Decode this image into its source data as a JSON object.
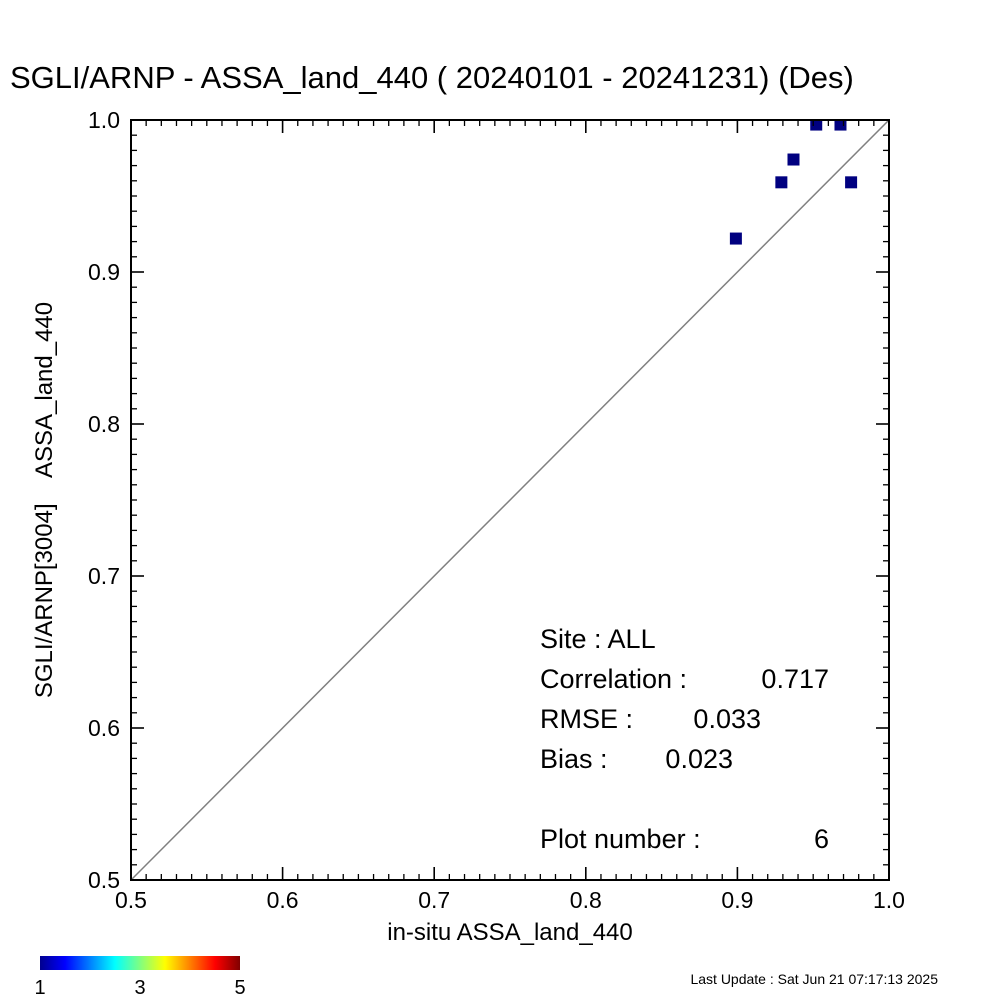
{
  "chart_data": {
    "type": "scatter",
    "title": "SGLI/ARNP - ASSA_land_440 ( 20240101 - 20241231) (Des)",
    "xlabel": "in-situ ASSA_land_440",
    "ylabel": "SGLI/ARNP[3004]    ASSA_land_440",
    "xlim": [
      0.5,
      1.0
    ],
    "ylim": [
      0.5,
      1.0
    ],
    "x_ticks": [
      "0.5",
      "0.6",
      "0.7",
      "0.8",
      "0.9",
      "1.0"
    ],
    "y_ticks": [
      "0.5",
      "0.6",
      "0.7",
      "0.8",
      "0.9",
      "1.0"
    ],
    "one_to_one_line": true,
    "marker_color": "#000080",
    "line_color": "#808080",
    "points": [
      {
        "x": 0.899,
        "y": 0.922
      },
      {
        "x": 0.929,
        "y": 0.959
      },
      {
        "x": 0.937,
        "y": 0.974
      },
      {
        "x": 0.952,
        "y": 0.997
      },
      {
        "x": 0.968,
        "y": 0.997
      },
      {
        "x": 0.975,
        "y": 0.959
      }
    ],
    "stats": {
      "site": "Site : ALL",
      "correlation_label": "Correlation :",
      "correlation_value": "0.717",
      "rmse_label": "RMSE :",
      "rmse_value": "0.033",
      "bias_label": "Bias :",
      "bias_value": "0.023",
      "plot_number_label": "Plot number :",
      "plot_number_value": "6"
    },
    "colorbar": {
      "min_label": "1",
      "mid_label": "3",
      "max_label": "5",
      "colors": [
        "#00008f",
        "#0000ff",
        "#0080ff",
        "#00ffff",
        "#80ff80",
        "#ffff00",
        "#ff8000",
        "#ff0000",
        "#800000"
      ]
    }
  },
  "footer": {
    "last_update": "Last Update : Sat Jun 21 07:17:13 2025"
  }
}
